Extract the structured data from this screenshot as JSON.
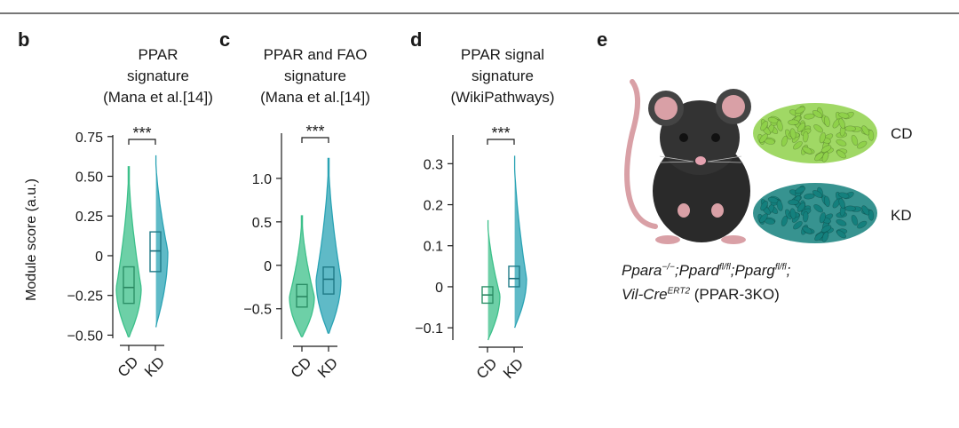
{
  "colors": {
    "cd": "#3cc08a",
    "kd": "#2aa3b4",
    "axis": "#1a1a1a",
    "rule": "#777777",
    "chow": "#8fd14a",
    "keto": "#14807d",
    "mouse": "#2a2a2a",
    "skin": "#d9a0a6"
  },
  "ylabel": "Module score (a.u.)",
  "significance": "***",
  "chart_data": [
    {
      "panel": "b",
      "type": "violin",
      "title": [
        "PPAR",
        "signature",
        "(Mana et al.[14])"
      ],
      "categories": [
        "CD",
        "KD"
      ],
      "ylabel": "Module score (a.u.)",
      "ylim": [
        -0.52,
        0.76
      ],
      "yticks": [
        0.75,
        0.5,
        0.25,
        0,
        -0.25,
        -0.5
      ],
      "yticklabels": [
        "0.75",
        "0.50",
        "0.25",
        "0",
        "−0.25",
        "−0.50"
      ],
      "series": [
        {
          "group": "CD",
          "min": -0.51,
          "q1": -0.3,
          "median": -0.2,
          "q3": -0.07,
          "max": 0.56
        },
        {
          "group": "KD",
          "min": -0.45,
          "q1": -0.1,
          "median": 0.03,
          "q3": 0.15,
          "max": 0.66
        }
      ],
      "significance": "***"
    },
    {
      "panel": "c",
      "type": "violin",
      "title": [
        "PPAR and FAO",
        "signature",
        "(Mana et al.[14])"
      ],
      "categories": [
        "CD",
        "KD"
      ],
      "ylabel": "",
      "ylim": [
        -0.85,
        1.52
      ],
      "yticks": [
        1.0,
        0.5,
        0,
        -0.5
      ],
      "yticklabels": [
        "1.0",
        "0.5",
        "0",
        "−0.5"
      ],
      "series": [
        {
          "group": "CD",
          "min": -0.82,
          "q1": -0.48,
          "median": -0.36,
          "q3": -0.22,
          "max": 0.57
        },
        {
          "group": "KD",
          "min": -0.78,
          "q1": -0.33,
          "median": -0.16,
          "q3": -0.02,
          "max": 1.23
        }
      ],
      "significance": "***"
    },
    {
      "panel": "d",
      "type": "violin",
      "title": [
        "PPAR signal",
        "signature",
        "(WikiPathways)"
      ],
      "categories": [
        "CD",
        "KD"
      ],
      "ylabel": "",
      "ylim": [
        -0.13,
        0.37
      ],
      "yticks": [
        0.3,
        0.2,
        0.1,
        0,
        -0.1
      ],
      "yticklabels": [
        "0.3",
        "0.2",
        "0.1",
        "0",
        "−0.1"
      ],
      "series": [
        {
          "group": "CD",
          "min": -0.13,
          "q1": -0.04,
          "median": -0.02,
          "q3": 0.0,
          "max": 0.17
        },
        {
          "group": "KD",
          "min": -0.1,
          "q1": 0.0,
          "median": 0.02,
          "q3": 0.05,
          "max": 0.33
        }
      ],
      "significance": "***"
    }
  ],
  "panel_e": {
    "label": "e",
    "diet_labels": [
      "CD",
      "KD"
    ],
    "genotype_line1": [
      "Ppara",
      "−/−",
      ";Ppard",
      "fl/fl",
      ";Pparg",
      "fl/fl",
      ";"
    ],
    "genotype_line2": [
      "Vil-Cre",
      "ERT2",
      " (PPAR-3KO)"
    ]
  }
}
